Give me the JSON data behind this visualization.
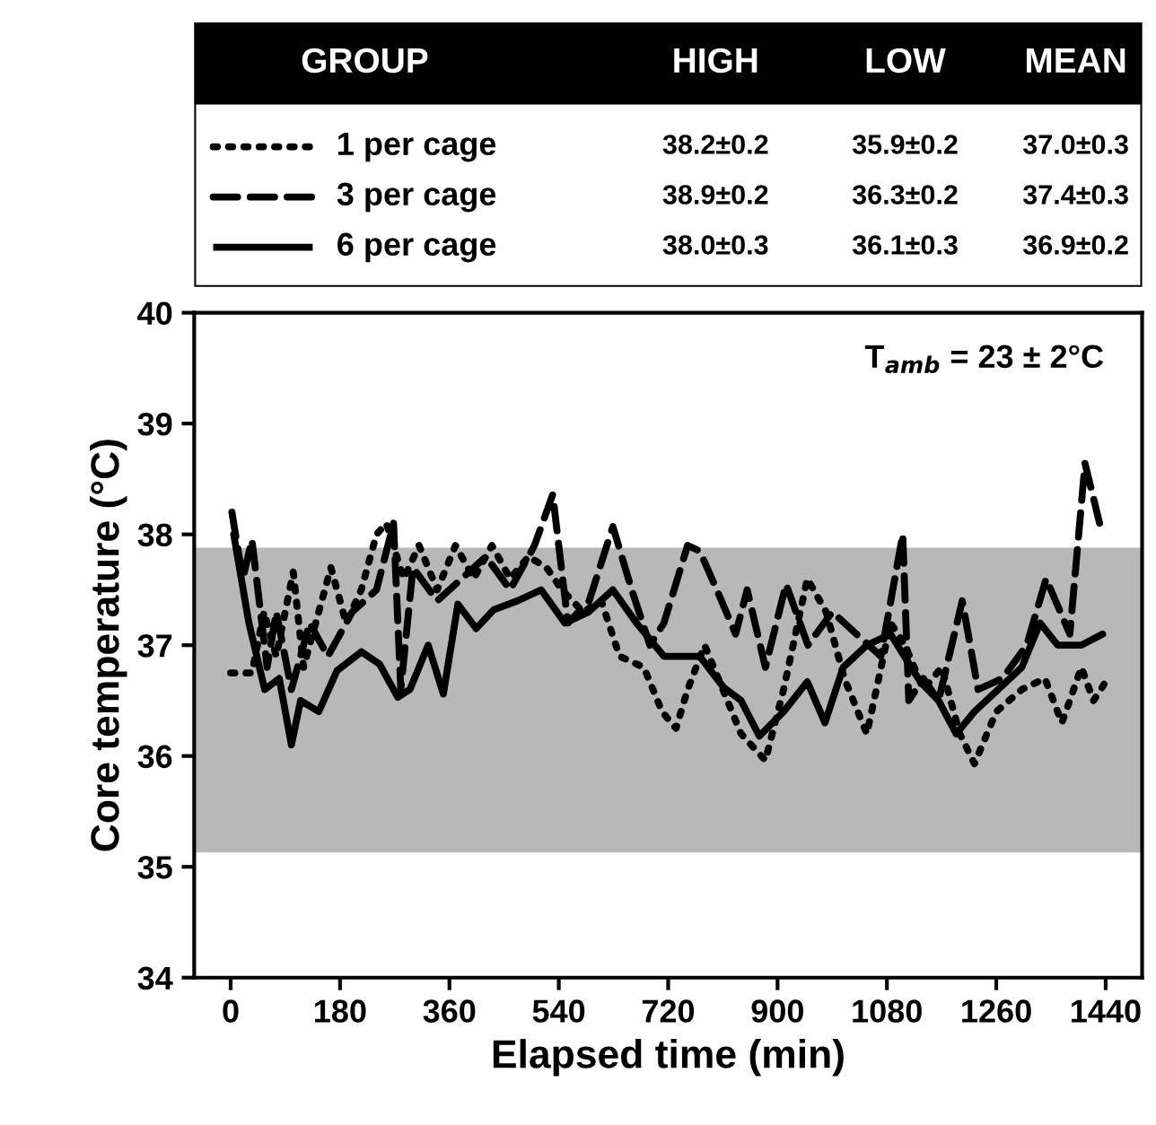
{
  "chart_data": {
    "type": "line",
    "xlabel": "Elapsed time (min)",
    "ylabel": "Core temperature (°C)",
    "xlim": [
      -60,
      1500
    ],
    "xticks": [
      0,
      180,
      360,
      540,
      720,
      900,
      1080,
      1260,
      1440
    ],
    "ylim": [
      34,
      40
    ],
    "yticks": [
      34,
      35,
      36,
      37,
      38,
      39,
      40
    ],
    "grid": false,
    "legend": "top",
    "marker": "none",
    "bands": [
      {
        "axis": "y",
        "from": 35.13,
        "to": 37.88,
        "color": "#b8b8b8"
      }
    ],
    "annotations": [
      "GROUP",
      "HIGH",
      "LOW",
      "MEAN",
      "38.2±0.2",
      "35.9±0.2",
      "37.0±0.3",
      "38.9±0.2",
      "36.3±0.2",
      "37.4±0.3",
      "38.0±0.3",
      "36.1±0.3",
      "36.9±0.2",
      "T$_{amb}$ = 23 ± 2°C"
    ],
    "series": [
      {
        "name": "1 per cage",
        "color": "#000000",
        "line_style": "dotted",
        "x": [
          0,
          35,
          55,
          75,
          103,
          120,
          145,
          165,
          190,
          215,
          240,
          256,
          285,
          310,
          340,
          370,
          400,
          430,
          460,
          490,
          520,
          545,
          580,
          610,
          640,
          680,
          710,
          733,
          752,
          780,
          810,
          840,
          880,
          910,
          949,
          980,
          1010,
          1047,
          1086,
          1110,
          1140,
          1170,
          1200,
          1224,
          1260,
          1302,
          1340,
          1368,
          1400,
          1420,
          1440
        ],
        "values": [
          36.75,
          36.75,
          37.3,
          36.9,
          37.66,
          36.8,
          37.3,
          37.7,
          37.2,
          37.5,
          38.0,
          38.1,
          37.6,
          37.9,
          37.5,
          37.9,
          37.6,
          37.9,
          37.6,
          37.8,
          37.7,
          37.5,
          37.3,
          37.4,
          36.9,
          36.8,
          36.4,
          36.25,
          36.6,
          37.0,
          36.6,
          36.2,
          35.96,
          36.6,
          37.6,
          37.3,
          36.7,
          36.2,
          37.2,
          37.0,
          36.6,
          36.8,
          36.2,
          35.93,
          36.4,
          36.6,
          36.7,
          36.3,
          36.8,
          36.5,
          36.67
        ]
      },
      {
        "name": "3 per cage",
        "color": "#000000",
        "line_style": "dashed",
        "x": [
          2,
          20,
          35,
          60,
          75,
          100,
          130,
          160,
          200,
          240,
          268,
          280,
          300,
          340,
          380,
          420,
          460,
          500,
          530,
          555,
          590,
          629,
          660,
          690,
          713,
          752,
          772,
          800,
          831,
          850,
          880,
          914,
          950,
          990,
          1030,
          1070,
          1106,
          1116,
          1140,
          1165,
          1204,
          1230,
          1270,
          1310,
          1342,
          1381,
          1406,
          1430
        ],
        "values": [
          38.2,
          37.6,
          37.95,
          36.8,
          37.3,
          36.6,
          37.2,
          36.9,
          37.3,
          37.5,
          38.1,
          36.6,
          37.7,
          37.4,
          37.6,
          37.8,
          37.5,
          37.9,
          38.36,
          37.2,
          37.4,
          38.07,
          37.5,
          37.0,
          37.2,
          37.9,
          37.85,
          37.5,
          37.1,
          37.5,
          36.8,
          37.55,
          37.0,
          37.3,
          37.1,
          36.9,
          38.0,
          36.5,
          36.7,
          36.5,
          37.4,
          36.6,
          36.7,
          37.0,
          37.6,
          37.1,
          38.64,
          38.1
        ]
      },
      {
        "name": "6 per cage",
        "color": "#000000",
        "line_style": "solid",
        "x": [
          5,
          30,
          56,
          80,
          100,
          115,
          145,
          175,
          215,
          245,
          275,
          295,
          325,
          350,
          374,
          404,
          433,
          472,
          511,
          550,
          589,
          629,
          668,
          713,
          772,
          811,
          840,
          870,
          910,
          949,
          978,
          1008,
          1047,
          1086,
          1135,
          1165,
          1194,
          1224,
          1263,
          1302,
          1332,
          1361,
          1400,
          1435
        ],
        "values": [
          38.0,
          37.2,
          36.6,
          36.7,
          36.1,
          36.5,
          36.4,
          36.77,
          36.94,
          36.83,
          36.53,
          36.6,
          37.0,
          36.56,
          37.37,
          37.15,
          37.32,
          37.4,
          37.5,
          37.2,
          37.3,
          37.5,
          37.2,
          36.9,
          36.9,
          36.62,
          36.5,
          36.18,
          36.4,
          36.67,
          36.3,
          36.8,
          37.0,
          37.1,
          36.67,
          36.5,
          36.2,
          36.4,
          36.6,
          36.8,
          37.2,
          37.0,
          37.0,
          37.1
        ]
      }
    ]
  }
}
